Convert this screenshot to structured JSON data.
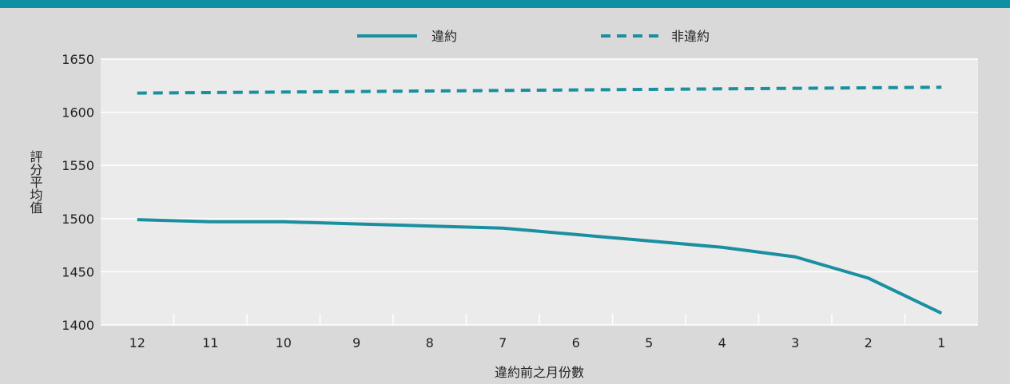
{
  "colors": {
    "header_bar": "#0f8fa3",
    "background": "#d9d9d9",
    "plot_background": "#ebebeb",
    "series": "#1a8fa0",
    "gridline": "#ffffff",
    "text": "#222222"
  },
  "chart_data": {
    "type": "line",
    "title": "",
    "xlabel": "違約前之月份數",
    "ylabel": "評分平均值",
    "categories": [
      "12",
      "11",
      "10",
      "9",
      "8",
      "7",
      "6",
      "5",
      "4",
      "3",
      "2",
      "1"
    ],
    "ylim": [
      1400,
      1650
    ],
    "yticks": [
      1400,
      1450,
      1500,
      1550,
      1600,
      1650
    ],
    "grid": true,
    "legend_position": "top-center",
    "series": [
      {
        "name": "違約",
        "style": "solid",
        "values": [
          1499,
          1497,
          1497,
          1495,
          1493,
          1491,
          1485,
          1479,
          1473,
          1464,
          1444,
          1411
        ]
      },
      {
        "name": "非違約",
        "style": "dashed",
        "values": [
          1618,
          1618.5,
          1619,
          1619.5,
          1620,
          1620.5,
          1621,
          1621.5,
          1622,
          1622.5,
          1623,
          1623.5
        ]
      }
    ]
  }
}
